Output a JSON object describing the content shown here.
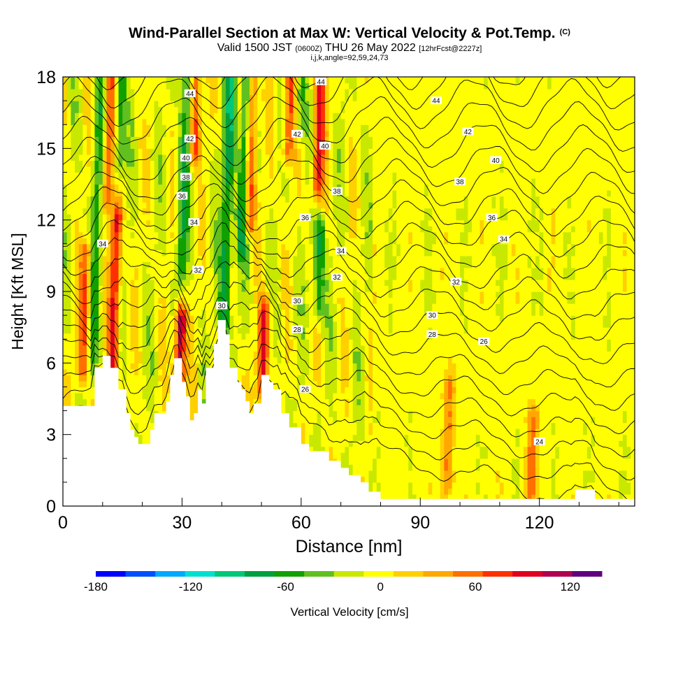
{
  "header": {
    "title": "Wind-Parallel Section at Max W: Vertical Velocity & Pot.Temp.",
    "copyright": "(C)",
    "valid_prefix": "Valid 1500 JST",
    "valid_utc": "(0600Z)",
    "valid_date": "THU 26 May 2022",
    "forecast_info": "[12hrFcst@2227z]",
    "indices": "i,j,k,angle=92,59,24,73"
  },
  "chart_data": {
    "type": "heatmap",
    "xlabel": "Distance [nm]",
    "ylabel": "Height [Kft MSL]",
    "xlim": [
      0,
      144
    ],
    "ylim": [
      0,
      18
    ],
    "xticks": [
      0,
      30,
      60,
      90,
      120
    ],
    "yticks": [
      0,
      3,
      6,
      9,
      12,
      15,
      18
    ],
    "colorbar": {
      "label": "Vertical Velocity [cm/s]",
      "ticks": [
        -180,
        -120,
        -60,
        0,
        60,
        120
      ],
      "range": [
        -180,
        140
      ],
      "step": 20,
      "colors": [
        "#0000ff",
        "#0050ff",
        "#00a8ff",
        "#00e0d0",
        "#00c878",
        "#00a040",
        "#10a000",
        "#60c020",
        "#c8e800",
        "#ffff00",
        "#ffd000",
        "#ffa800",
        "#ff7000",
        "#ff3000",
        "#e00020",
        "#b00050",
        "#600080"
      ]
    },
    "terrain_profile": [
      [
        0,
        4.2
      ],
      [
        8,
        4.2
      ],
      [
        8,
        5.8
      ],
      [
        10,
        5.8
      ],
      [
        10,
        6.3
      ],
      [
        12,
        6.3
      ],
      [
        12,
        5.8
      ],
      [
        14,
        5.8
      ],
      [
        14,
        4.9
      ],
      [
        16,
        4.9
      ],
      [
        16,
        3.9
      ],
      [
        17,
        3.9
      ],
      [
        17,
        3.2
      ],
      [
        18,
        3.2
      ],
      [
        18,
        2.9
      ],
      [
        19,
        2.9
      ],
      [
        19,
        2.6
      ],
      [
        22,
        2.6
      ],
      [
        22,
        3.2
      ],
      [
        23,
        3.2
      ],
      [
        23,
        3.9
      ],
      [
        26,
        3.9
      ],
      [
        26,
        4.4
      ],
      [
        27,
        4.4
      ],
      [
        27,
        5.5
      ],
      [
        28,
        5.5
      ],
      [
        28,
        6.2
      ],
      [
        30,
        6.2
      ],
      [
        30,
        5.2
      ],
      [
        31,
        5.2
      ],
      [
        31,
        4.6
      ],
      [
        32,
        4.6
      ],
      [
        32,
        3.6
      ],
      [
        33,
        3.6
      ],
      [
        33,
        3.9
      ],
      [
        34,
        3.9
      ],
      [
        34,
        4.9
      ],
      [
        35,
        4.9
      ],
      [
        35,
        4.3
      ],
      [
        36,
        4.3
      ],
      [
        36,
        5.8
      ],
      [
        38,
        5.8
      ],
      [
        38,
        6.8
      ],
      [
        39,
        6.8
      ],
      [
        39,
        7.8
      ],
      [
        41,
        7.8
      ],
      [
        41,
        7.2
      ],
      [
        42,
        7.2
      ],
      [
        42,
        5.8
      ],
      [
        44,
        5.8
      ],
      [
        44,
        5.2
      ],
      [
        45,
        5.2
      ],
      [
        45,
        4.9
      ],
      [
        46,
        4.9
      ],
      [
        46,
        4.4
      ],
      [
        47,
        4.4
      ],
      [
        47,
        3.9
      ],
      [
        48,
        3.9
      ],
      [
        48,
        4.3
      ],
      [
        50,
        4.3
      ],
      [
        50,
        5.5
      ],
      [
        52,
        5.5
      ],
      [
        52,
        5.2
      ],
      [
        53,
        5.2
      ],
      [
        53,
        4.9
      ],
      [
        55,
        4.9
      ],
      [
        55,
        3.9
      ],
      [
        57,
        3.9
      ],
      [
        57,
        3.3
      ],
      [
        60,
        3.3
      ],
      [
        60,
        2.6
      ],
      [
        62,
        2.6
      ],
      [
        62,
        2.3
      ],
      [
        67,
        2.3
      ],
      [
        67,
        1.9
      ],
      [
        70,
        1.9
      ],
      [
        70,
        1.6
      ],
      [
        72,
        1.6
      ],
      [
        72,
        1.3
      ],
      [
        75,
        1.3
      ],
      [
        75,
        1.0
      ],
      [
        77,
        1.0
      ],
      [
        77,
        0.6
      ],
      [
        80,
        0.6
      ],
      [
        80,
        0.3
      ],
      [
        129,
        0.3
      ],
      [
        129,
        0.7
      ],
      [
        134,
        0.7
      ],
      [
        134,
        0.3
      ],
      [
        144,
        0.3
      ]
    ],
    "theta_contours": {
      "units": "K",
      "interval": 1,
      "labels": [
        {
          "value": "44",
          "x": 32,
          "y": 17.3
        },
        {
          "value": "44",
          "x": 65,
          "y": 17.8
        },
        {
          "value": "44",
          "x": 94,
          "y": 17.0
        },
        {
          "value": "42",
          "x": 32,
          "y": 15.4
        },
        {
          "value": "42",
          "x": 59,
          "y": 15.6
        },
        {
          "value": "42",
          "x": 102,
          "y": 15.7
        },
        {
          "value": "40",
          "x": 31,
          "y": 14.6
        },
        {
          "value": "40",
          "x": 66,
          "y": 15.1
        },
        {
          "value": "40",
          "x": 109,
          "y": 14.5
        },
        {
          "value": "38",
          "x": 31,
          "y": 13.8
        },
        {
          "value": "38",
          "x": 69,
          "y": 13.2
        },
        {
          "value": "38",
          "x": 100,
          "y": 13.6
        },
        {
          "value": "36",
          "x": 30,
          "y": 13.0
        },
        {
          "value": "36",
          "x": 61,
          "y": 12.1
        },
        {
          "value": "36",
          "x": 108,
          "y": 12.1
        },
        {
          "value": "34",
          "x": 10,
          "y": 11.0
        },
        {
          "value": "34",
          "x": 33,
          "y": 11.9
        },
        {
          "value": "34",
          "x": 70,
          "y": 10.7
        },
        {
          "value": "34",
          "x": 111,
          "y": 11.2
        },
        {
          "value": "32",
          "x": 34,
          "y": 9.9
        },
        {
          "value": "32",
          "x": 69,
          "y": 9.6
        },
        {
          "value": "32",
          "x": 99,
          "y": 9.4
        },
        {
          "value": "30",
          "x": 40,
          "y": 8.4
        },
        {
          "value": "30",
          "x": 59,
          "y": 8.6
        },
        {
          "value": "30",
          "x": 93,
          "y": 8.0
        },
        {
          "value": "28",
          "x": 59,
          "y": 7.4
        },
        {
          "value": "28",
          "x": 93,
          "y": 7.2
        },
        {
          "value": "26",
          "x": 61,
          "y": 4.9
        },
        {
          "value": "26",
          "x": 106,
          "y": 6.9
        },
        {
          "value": "24",
          "x": 120,
          "y": 2.7
        }
      ]
    },
    "velocity_features": [
      {
        "kind": "updraft",
        "x": 5.5,
        "ymin": 5.8,
        "ymax": 10.5,
        "peak_cms": 80
      },
      {
        "kind": "downdraft",
        "x": 8.5,
        "ymin": 6.0,
        "ymax": 18,
        "peak_cms": -50
      },
      {
        "kind": "updraft",
        "x": 13,
        "ymin": 5.0,
        "ymax": 12.0,
        "peak_cms": 100
      },
      {
        "kind": "updraft",
        "x": 11.5,
        "ymin": 13.0,
        "ymax": 18,
        "peak_cms": 80
      },
      {
        "kind": "downdraft",
        "x": 14.5,
        "ymin": 14.5,
        "ymax": 18,
        "peak_cms": -60
      },
      {
        "kind": "updraft",
        "x": 29.5,
        "ymin": 5.5,
        "ymax": 7.7,
        "peak_cms": 140
      },
      {
        "kind": "updraft",
        "x": 33.5,
        "ymin": 15.0,
        "ymax": 18,
        "peak_cms": 80
      },
      {
        "kind": "downdraft",
        "x": 30.5,
        "ymin": 10.0,
        "ymax": 18,
        "peak_cms": -60
      },
      {
        "kind": "downdraft",
        "x": 41.5,
        "ymin": 7.8,
        "ymax": 18,
        "peak_cms": -80
      },
      {
        "kind": "updraft",
        "x": 50.5,
        "ymin": 5.0,
        "ymax": 8.0,
        "peak_cms": 100
      },
      {
        "kind": "updraft",
        "x": 47.5,
        "ymin": 12.0,
        "ymax": 18,
        "peak_cms": 80
      },
      {
        "kind": "downdraft",
        "x": 45.5,
        "ymin": 11.0,
        "ymax": 18,
        "peak_cms": -70
      },
      {
        "kind": "updraft",
        "x": 57,
        "ymin": 15.0,
        "ymax": 18,
        "peak_cms": 80
      },
      {
        "kind": "downdraft",
        "x": 60,
        "ymin": 16.0,
        "ymax": 18,
        "peak_cms": -50
      },
      {
        "kind": "downdraft",
        "x": 64.5,
        "ymin": 8.5,
        "ymax": 11.5,
        "peak_cms": -70
      },
      {
        "kind": "updraft",
        "x": 64.5,
        "ymin": 13.5,
        "ymax": 18,
        "peak_cms": 100
      },
      {
        "kind": "updraft",
        "x": 97,
        "ymin": 1.0,
        "ymax": 5.0,
        "peak_cms": 60
      },
      {
        "kind": "updraft",
        "x": 118,
        "ymin": 0.5,
        "ymax": 3.5,
        "peak_cms": 60
      }
    ]
  }
}
